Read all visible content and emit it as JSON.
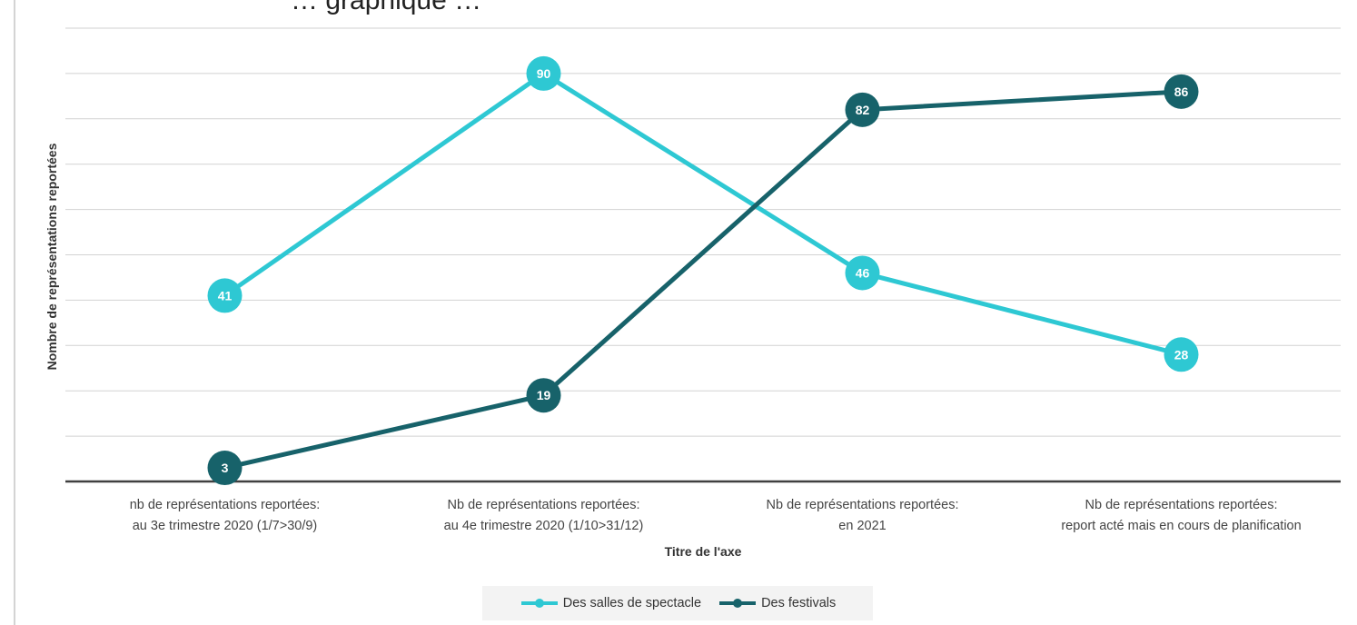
{
  "chart_data": {
    "type": "line",
    "title": "… graphique …",
    "xlabel": "Titre de l'axe",
    "ylabel": "Nombre de représentations reportées",
    "categories": [
      [
        "nb de représentations reportées:",
        "au 3e trimestre 2020 (1/7>30/9)"
      ],
      [
        "Nb de représentations reportées:",
        "au 4e trimestre 2020 (1/10>31/12)"
      ],
      [
        "Nb de représentations reportées:",
        "en 2021"
      ],
      [
        "Nb de représentations reportées:",
        "report acté mais en cours de planification"
      ]
    ],
    "series": [
      {
        "name": "Des salles de spectacle",
        "values": [
          41,
          90,
          46,
          28
        ],
        "color": "#2ec8d3"
      },
      {
        "name": "Des festivals",
        "values": [
          3,
          19,
          82,
          86
        ],
        "color": "#17626a"
      }
    ],
    "ylim": [
      0,
      100
    ],
    "grid": true,
    "legend_position": "bottom"
  }
}
